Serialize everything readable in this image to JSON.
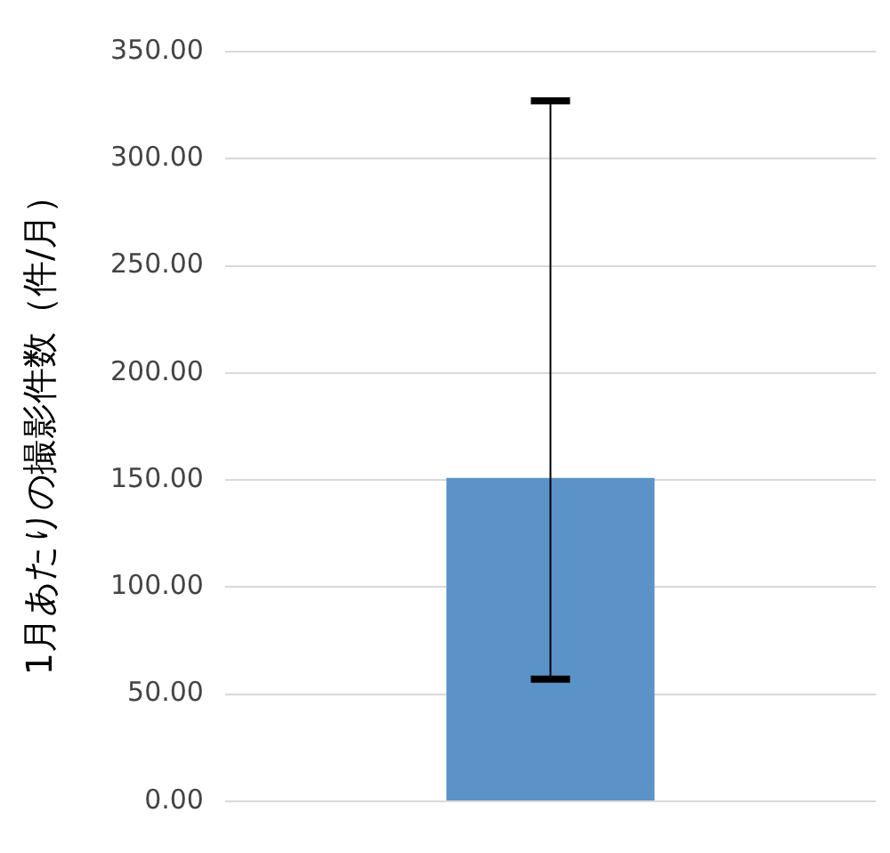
{
  "chart_data": {
    "type": "bar",
    "ylabel": "1月あたりの撮影件数（件/月）",
    "categories": [
      null
    ],
    "values": [
      151
    ],
    "errors": [
      [
        57,
        327
      ]
    ],
    "color": "#5b93c8",
    "ylim": [
      0,
      350
    ],
    "yticks": [
      {
        "value": 0,
        "label": "0.00"
      },
      {
        "value": 50,
        "label": "50.00"
      },
      {
        "value": 100,
        "label": "100.00"
      },
      {
        "value": 150,
        "label": "150.00"
      },
      {
        "value": 200,
        "label": "200.00"
      },
      {
        "value": 250,
        "label": "250.00"
      },
      {
        "value": 300,
        "label": "300.00"
      },
      {
        "value": 350,
        "label": "350.00"
      }
    ],
    "grid": "y"
  }
}
